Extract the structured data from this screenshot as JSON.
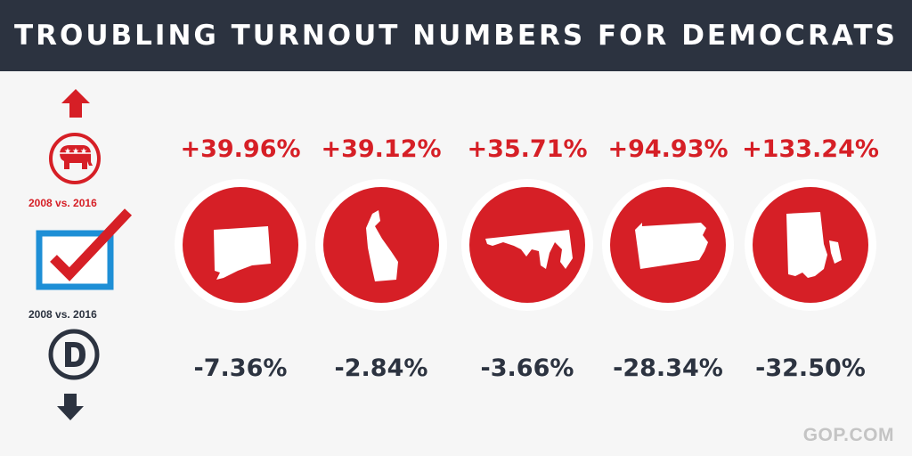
{
  "title": "TROUBLING TURNOUT NUMBERS FOR DEMOCRATS",
  "legend": {
    "rep_label": "2008 vs. 2016",
    "dem_label": "2008 vs. 2016",
    "icons": [
      "arrow-up-icon",
      "republican-elephant-icon",
      "ballot-check-icon",
      "democrat-d-icon",
      "arrow-down-icon"
    ]
  },
  "states": [
    {
      "shape": "connecticut",
      "gain": "+39.96%",
      "loss": "-7.36%"
    },
    {
      "shape": "delaware",
      "gain": "+39.12%",
      "loss": "-2.84%"
    },
    {
      "shape": "maryland",
      "gain": "+35.71%",
      "loss": "-3.66%"
    },
    {
      "shape": "pennsylvania",
      "gain": "+94.93%",
      "loss": "-28.34%"
    },
    {
      "shape": "rhode-island",
      "gain": "+133.24%",
      "loss": "-32.50%"
    }
  ],
  "watermark": "GOP.COM",
  "colors": {
    "red": "#d61f26",
    "navy": "#2c3340",
    "blue": "#1e8fd6",
    "background": "#f6f6f6"
  }
}
